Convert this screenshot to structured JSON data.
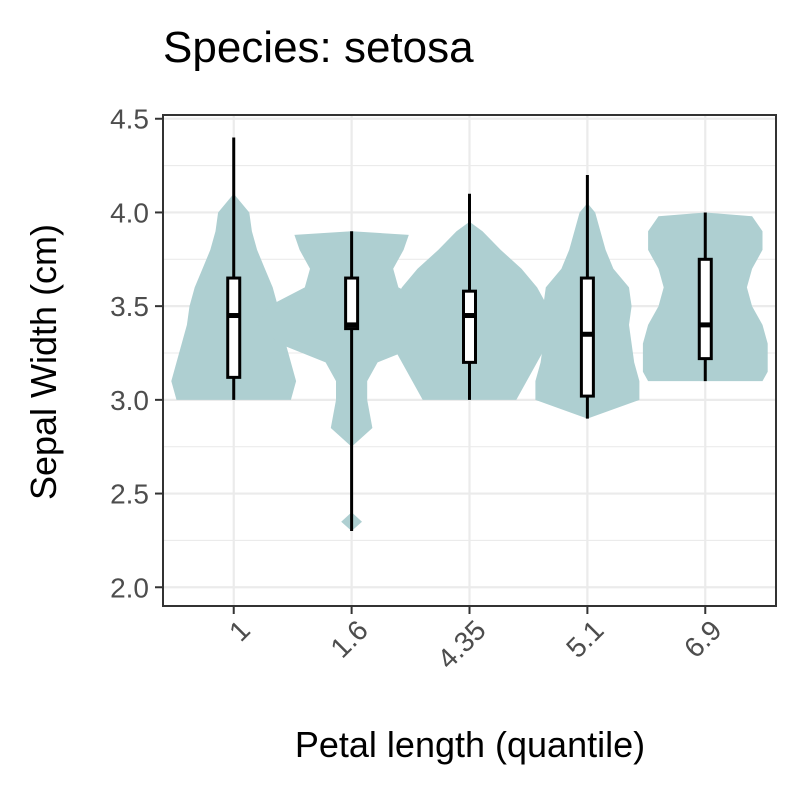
{
  "chart_data": {
    "type": "violin",
    "title": "Species: setosa",
    "xlabel": "Petal length (quantile)",
    "ylabel": "Sepal Width (cm)",
    "ylim": [
      1.9,
      4.52
    ],
    "yticks": [
      "2.0",
      "2.5",
      "3.0",
      "3.5",
      "4.0",
      "4.5"
    ],
    "grid": true,
    "colors": {
      "violin_fill": "#aecfd1",
      "box_fill": "#ffffff",
      "stroke": "#000000",
      "grid": "#ebebeb",
      "panel_border": "#333333"
    },
    "categories": [
      "1",
      "1.6",
      "4.35",
      "5.1",
      "6.9"
    ],
    "groups": [
      {
        "label": "1",
        "min": 3.0,
        "q1": 3.12,
        "median": 3.45,
        "q3": 3.65,
        "max": 4.4,
        "density": [
          [
            3.0,
            0.11
          ],
          [
            3.1,
            0.12
          ],
          [
            3.2,
            0.11
          ],
          [
            3.3,
            0.1
          ],
          [
            3.4,
            0.09
          ],
          [
            3.5,
            0.085
          ],
          [
            3.6,
            0.075
          ],
          [
            3.7,
            0.06
          ],
          [
            3.8,
            0.045
          ],
          [
            3.9,
            0.035
          ],
          [
            4.0,
            0.03
          ],
          [
            4.05,
            0.015
          ],
          [
            4.1,
            0.0
          ]
        ]
      },
      {
        "label": "1.6",
        "min": 2.3,
        "q1": 3.38,
        "median": 3.4,
        "q3": 3.65,
        "max": 3.9,
        "density": [
          [
            2.3,
            0.0
          ],
          [
            2.35,
            0.02
          ],
          [
            2.4,
            0.0
          ],
          [
            2.75,
            0.0
          ],
          [
            2.85,
            0.04
          ],
          [
            3.0,
            0.03
          ],
          [
            3.1,
            0.03
          ],
          [
            3.2,
            0.05
          ],
          [
            3.3,
            0.14
          ],
          [
            3.4,
            0.18
          ],
          [
            3.5,
            0.16
          ],
          [
            3.6,
            0.09
          ],
          [
            3.7,
            0.08
          ],
          [
            3.8,
            0.1
          ],
          [
            3.88,
            0.11
          ],
          [
            3.9,
            0.0
          ]
        ]
      },
      {
        "label": "4.35",
        "min": 3.0,
        "q1": 3.2,
        "median": 3.45,
        "q3": 3.58,
        "max": 4.1,
        "density": [
          [
            3.0,
            0.09
          ],
          [
            3.1,
            0.11
          ],
          [
            3.2,
            0.13
          ],
          [
            3.3,
            0.15
          ],
          [
            3.4,
            0.16
          ],
          [
            3.5,
            0.15
          ],
          [
            3.6,
            0.13
          ],
          [
            3.7,
            0.1
          ],
          [
            3.8,
            0.06
          ],
          [
            3.9,
            0.025
          ],
          [
            3.95,
            0.0
          ]
        ]
      },
      {
        "label": "5.1",
        "min": 2.9,
        "q1": 3.02,
        "median": 3.35,
        "q3": 3.65,
        "max": 4.2,
        "density": [
          [
            2.9,
            0.0
          ],
          [
            2.95,
            0.05
          ],
          [
            3.0,
            0.1
          ],
          [
            3.1,
            0.1
          ],
          [
            3.2,
            0.09
          ],
          [
            3.3,
            0.085
          ],
          [
            3.4,
            0.08
          ],
          [
            3.5,
            0.085
          ],
          [
            3.6,
            0.08
          ],
          [
            3.7,
            0.05
          ],
          [
            3.8,
            0.035
          ],
          [
            3.9,
            0.025
          ],
          [
            4.0,
            0.015
          ],
          [
            4.05,
            0.0
          ]
        ]
      },
      {
        "label": "6.9",
        "min": 3.1,
        "q1": 3.22,
        "median": 3.4,
        "q3": 3.75,
        "max": 4.0,
        "density": [
          [
            3.1,
            0.11
          ],
          [
            3.15,
            0.12
          ],
          [
            3.2,
            0.12
          ],
          [
            3.3,
            0.12
          ],
          [
            3.4,
            0.11
          ],
          [
            3.5,
            0.09
          ],
          [
            3.6,
            0.08
          ],
          [
            3.7,
            0.09
          ],
          [
            3.8,
            0.11
          ],
          [
            3.9,
            0.11
          ],
          [
            3.98,
            0.09
          ],
          [
            4.0,
            0.0
          ]
        ]
      }
    ]
  }
}
